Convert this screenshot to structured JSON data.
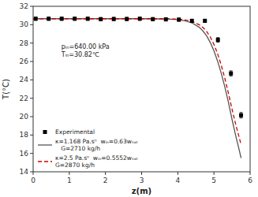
{
  "chart_data": {
    "type": "line",
    "xlabel": "z(m)",
    "ylabel": "T(°C)",
    "annotations": [
      "pᵢₙ=640.00 kPa",
      "Tᵢₙ=30.82℃"
    ],
    "xlim": [
      0,
      6
    ],
    "ylim": [
      14,
      32
    ],
    "xticks": [
      0,
      1,
      2,
      3,
      4,
      5,
      6
    ],
    "yticks": [
      14,
      16,
      18,
      20,
      22,
      24,
      26,
      28,
      30,
      32
    ],
    "grid": false,
    "legend": "lower left",
    "series": [
      {
        "name": "Experimental",
        "type": "scatter",
        "marker": "square",
        "color": "black",
        "x": [
          0.07,
          0.43,
          0.79,
          1.15,
          1.51,
          1.87,
          2.23,
          2.59,
          2.95,
          3.31,
          3.67,
          4.03,
          4.39,
          4.75,
          5.11,
          5.47,
          5.75
        ],
        "values": [
          30.65,
          30.65,
          30.65,
          30.65,
          30.65,
          30.6,
          30.62,
          30.62,
          30.65,
          30.6,
          30.58,
          30.55,
          30.42,
          30.42,
          28.35,
          24.7,
          20.15
        ],
        "yerr": [
          0.18,
          0.18,
          0.18,
          0.18,
          0.18,
          0.18,
          0.18,
          0.18,
          0.18,
          0.18,
          0.18,
          0.18,
          0.18,
          0.18,
          0.25,
          0.28,
          0.3
        ]
      },
      {
        "name": "κ=1.168 Pa.sⁿ  wᵢₙ=0.63wₛₐₜ\n   G=2710 kg/h",
        "type": "line",
        "line_style": "solid",
        "color": "#555555",
        "x": [
          0.0,
          0.5,
          1.0,
          1.5,
          2.0,
          2.5,
          3.0,
          3.5,
          3.8,
          4.0,
          4.2,
          4.4,
          4.6,
          4.7,
          4.8,
          4.9,
          5.0,
          5.1,
          5.2,
          5.3,
          5.4,
          5.5,
          5.6,
          5.7,
          5.75
        ],
        "values": [
          30.65,
          30.65,
          30.65,
          30.65,
          30.65,
          30.65,
          30.65,
          30.63,
          30.6,
          30.55,
          30.42,
          30.18,
          29.7,
          29.3,
          28.78,
          28.05,
          27.15,
          26.05,
          24.75,
          23.25,
          21.55,
          19.7,
          17.95,
          16.35,
          15.5
        ]
      },
      {
        "name": "κ=2.5 Pa.sⁿ  wᵢₙ=0.5552wₛₐₜ\nG=2870 kg/h",
        "type": "line",
        "line_style": "dashed",
        "color": "#cc0000",
        "x": [
          0.0,
          0.5,
          1.0,
          1.5,
          2.0,
          2.5,
          3.0,
          3.5,
          3.8,
          4.0,
          4.2,
          4.4,
          4.6,
          4.7,
          4.8,
          4.9,
          5.0,
          5.1,
          5.2,
          5.3,
          5.4,
          5.5,
          5.6,
          5.7,
          5.75
        ],
        "values": [
          30.65,
          30.65,
          30.65,
          30.65,
          30.65,
          30.65,
          30.65,
          30.65,
          30.63,
          30.6,
          30.52,
          30.35,
          29.98,
          29.68,
          29.25,
          28.65,
          27.85,
          26.85,
          25.62,
          24.18,
          22.55,
          20.82,
          19.18,
          17.7,
          16.95
        ]
      }
    ]
  }
}
